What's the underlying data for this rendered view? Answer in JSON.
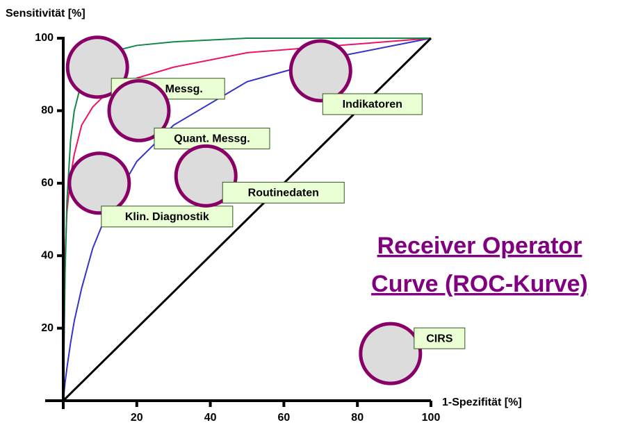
{
  "chart_data": {
    "type": "line",
    "title": "Receiver Operator",
    "subtitle": "Curve (ROC-Kurve)",
    "ylabel": "Sensitivität [%]",
    "xlabel": "1-Spezifität [%]",
    "x": [
      0,
      0.5,
      1,
      2,
      3,
      5,
      8,
      12,
      20,
      30,
      50,
      75,
      100
    ],
    "series": [
      {
        "color": "#000000",
        "values": [
          0,
          0.5,
          1,
          2,
          3,
          5,
          8,
          12,
          20,
          30,
          50,
          75,
          100
        ]
      },
      {
        "color": "#3333cc",
        "values": [
          0,
          5,
          9,
          16,
          22,
          31,
          42,
          52,
          66,
          76,
          88,
          95,
          100
        ]
      },
      {
        "color": "#ee1166",
        "values": [
          0,
          40,
          52,
          62,
          68,
          76,
          81,
          85,
          89,
          92,
          96,
          98,
          100
        ]
      },
      {
        "color": "#118844",
        "values": [
          0,
          35,
          55,
          72,
          80,
          88,
          93,
          96,
          98,
          99,
          100,
          100,
          100
        ]
      }
    ],
    "points": [
      {
        "label": "Wiss. Messg.",
        "x": 9.3,
        "y": 92
      },
      {
        "label": "Quant. Messg.",
        "x": 20.6,
        "y": 80
      },
      {
        "label": "Klin. Diagnostik",
        "x": 9.8,
        "y": 60
      },
      {
        "label": "Routinedaten",
        "x": 38.8,
        "y": 62
      },
      {
        "label": "Indikatoren",
        "x": 70,
        "y": 91
      },
      {
        "label": "CIRS",
        "x": 89,
        "y": 13
      }
    ],
    "xlim": [
      0,
      100
    ],
    "ylim": [
      0,
      100
    ],
    "xticks": [
      20,
      40,
      60,
      80,
      100
    ],
    "yticks": [
      20,
      40,
      60,
      80,
      100
    ]
  }
}
